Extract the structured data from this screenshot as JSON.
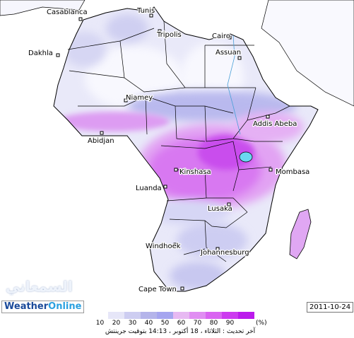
{
  "map": {
    "cities": [
      {
        "name": "Casablanca"
      },
      {
        "name": "Tunis"
      },
      {
        "name": "Tripolis"
      },
      {
        "name": "Cairo"
      },
      {
        "name": "Assuan"
      },
      {
        "name": "Dakhla"
      },
      {
        "name": "Niamey"
      },
      {
        "name": "Addis Abeba"
      },
      {
        "name": "Abidjan"
      },
      {
        "name": "Kinshasa"
      },
      {
        "name": "Mombasa"
      },
      {
        "name": "Luanda"
      },
      {
        "name": "Lusaka"
      },
      {
        "name": "Windhoek"
      },
      {
        "name": "Johannesburg"
      },
      {
        "name": "Cape Town"
      }
    ],
    "colors": {
      "sea": "#ffffff",
      "land": "#fbfbff",
      "border": "#000000"
    }
  },
  "branding": {
    "brand_part1": "Weather",
    "brand_part2": "Online",
    "arabic_brand": "السمعاني",
    "date": "2011-10-24"
  },
  "legend": {
    "unit": "(%)",
    "levels": [
      {
        "label": "10",
        "color": "#ffffff"
      },
      {
        "label": "20",
        "color": "#e6e6f8"
      },
      {
        "label": "30",
        "color": "#cdcdf1"
      },
      {
        "label": "40",
        "color": "#b4b4ea"
      },
      {
        "label": "50",
        "color": "#a5a5ef"
      },
      {
        "label": "60",
        "color": "#e7b9f2"
      },
      {
        "label": "70",
        "color": "#e08ef2"
      },
      {
        "label": "80",
        "color": "#d964f1"
      },
      {
        "label": "90",
        "color": "#cc3aef"
      },
      {
        "label": "",
        "color": "#bb1aec"
      }
    ],
    "update_text": "آخر تحديث : الثلاثاء ، 18 أكتوبر ، 14:13 بتوقيت جرينتش"
  }
}
